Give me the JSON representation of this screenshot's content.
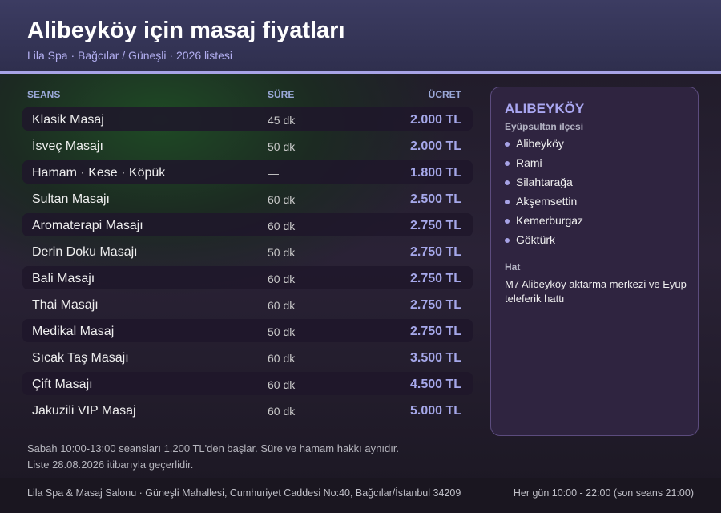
{
  "header": {
    "title": "Alibeyköy için masaj fiyatları",
    "subtitle": "Lila Spa · Bağcılar / Güneşli · 2026 listesi"
  },
  "table": {
    "columns": [
      "SEANS",
      "SÜRE",
      "ÜCRET"
    ],
    "rows": [
      [
        "Klasik Masaj",
        "45 dk",
        "2.000 TL"
      ],
      [
        "İsveç Masajı",
        "50 dk",
        "2.000 TL"
      ],
      [
        "Hamam · Kese · Köpük",
        "—",
        "1.800 TL"
      ],
      [
        "Sultan Masajı",
        "60 dk",
        "2.500 TL"
      ],
      [
        "Aromaterapi Masajı",
        "60 dk",
        "2.750 TL"
      ],
      [
        "Derin Doku Masajı",
        "50 dk",
        "2.750 TL"
      ],
      [
        "Bali Masajı",
        "60 dk",
        "2.750 TL"
      ],
      [
        "Thai Masajı",
        "60 dk",
        "2.750 TL"
      ],
      [
        "Medikal Masaj",
        "50 dk",
        "2.750 TL"
      ],
      [
        "Sıcak Taş Masajı",
        "60 dk",
        "3.500 TL"
      ],
      [
        "Çift Masajı",
        "60 dk",
        "4.500 TL"
      ],
      [
        "Jakuzili VIP Masaj",
        "60 dk",
        "5.000 TL"
      ]
    ]
  },
  "sidebar": {
    "title": "ALIBEYKÖY",
    "subtitle": "Eyüpsultan ilçesi",
    "items": [
      "Alibeyköy",
      "Rami",
      "Silahtarağa",
      "Akşemsettin",
      "Kemerburgaz",
      "Göktürk"
    ],
    "line_label": "Hat",
    "line_text": "M7 Alibeyköy aktarma merkezi ve Eyüp teleferik hattı"
  },
  "notes": [
    "Sabah 10:00-13:00 seansları 1.200 TL'den başlar. Süre ve hamam hakkı aynıdır.",
    "Liste 28.08.2026 itibarıyla geçerlidir."
  ],
  "footer": {
    "address": "Lila Spa & Masaj Salonu · Güneşli Mahallesi, Cumhuriyet Caddesi No:40, Bağcılar/İstanbul 34209",
    "hours": "Her gün 10:00 - 22:00 (son seans 21:00)"
  }
}
